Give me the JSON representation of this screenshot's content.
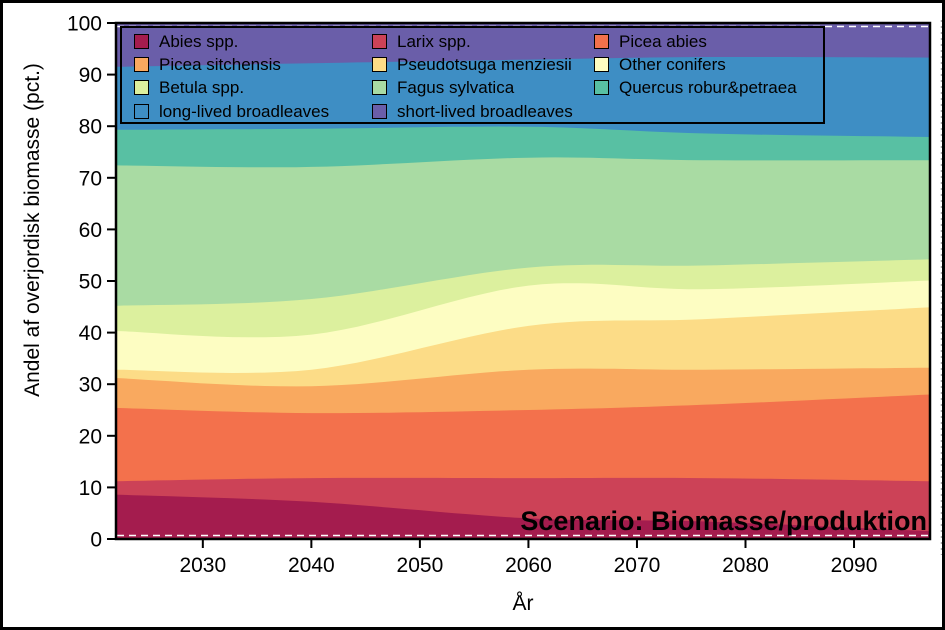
{
  "chart_data": {
    "type": "area",
    "stacked": true,
    "title": "",
    "xlabel": "År",
    "ylabel": "Andel af overjordisk biomasse (pct.)",
    "annotation": "Scenario: Biomasse/produktion",
    "xlim": [
      2022,
      2097
    ],
    "ylim": [
      0,
      100
    ],
    "xticks": [
      2030,
      2040,
      2050,
      2060,
      2070,
      2080,
      2090
    ],
    "yticks": [
      0,
      10,
      20,
      30,
      40,
      50,
      60,
      70,
      80,
      90,
      100
    ],
    "grid": false,
    "legend_position": "top-left-inside",
    "x": [
      2022,
      2040,
      2060,
      2076,
      2097
    ],
    "series": [
      {
        "name": "Abies spp.",
        "color": "#a41c4e",
        "values": [
          8.7,
          7.3,
          4.1,
          3.5,
          1.6
        ]
      },
      {
        "name": "Larix spp.",
        "color": "#cc4257",
        "values": [
          2.6,
          4.6,
          7.8,
          8.4,
          9.7
        ]
      },
      {
        "name": "Picea abies",
        "color": "#f3714c",
        "values": [
          14.2,
          12.6,
          13.2,
          14.2,
          16.8
        ]
      },
      {
        "name": "Picea sitchensis",
        "color": "#f9a95f",
        "values": [
          5.8,
          5.2,
          7.8,
          6.8,
          5.2
        ]
      },
      {
        "name": "Pseudotsuga menziesii",
        "color": "#fcdc87",
        "values": [
          1.6,
          3.2,
          8.5,
          9.8,
          11.7
        ]
      },
      {
        "name": "Other conifers",
        "color": "#fdfdc2",
        "values": [
          7.5,
          6.8,
          7.8,
          5.8,
          5.2
        ]
      },
      {
        "name": "Betula spp.",
        "color": "#dcf09e",
        "values": [
          4.9,
          6.9,
          3.5,
          4.6,
          4.1
        ]
      },
      {
        "name": "Fagus sylvatica",
        "color": "#a9dba3",
        "values": [
          27.2,
          25.6,
          21.3,
          20.4,
          19.2
        ]
      },
      {
        "name": "Quercus robur&petraea",
        "color": "#58c0a3",
        "values": [
          6.9,
          7.4,
          6.0,
          5.2,
          4.5
        ]
      },
      {
        "name": "long-lived broadleaves",
        "color": "#3e8ec4",
        "values": [
          12.2,
          12.7,
          13.0,
          14.8,
          15.4
        ]
      },
      {
        "name": "short-lived broadleaves",
        "color": "#6a5ea9",
        "values": [
          8.4,
          7.7,
          7.0,
          6.5,
          6.6
        ]
      }
    ],
    "frame_color": "#000000",
    "top_bottom_dash_color": "#ffffff",
    "outer_dash_color": "#aaaaaa"
  }
}
